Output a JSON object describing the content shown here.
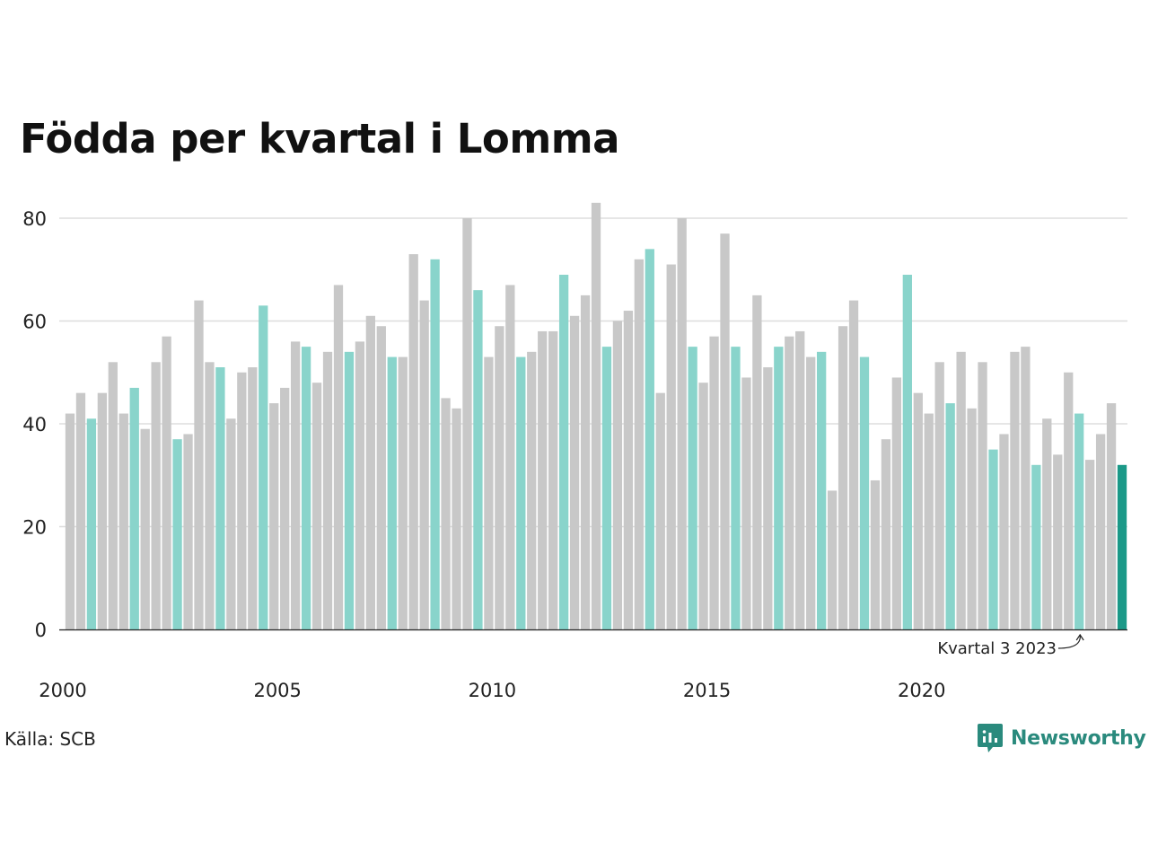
{
  "title": "Födda per kvartal i Lomma",
  "source": "Källa: SCB",
  "brand": {
    "name": "Newsworthy",
    "icon": "newsworthy-logo-icon"
  },
  "colors": {
    "gray": "#c8c8c8",
    "q3": "#89d4cb",
    "highlight": "#1b9988",
    "grid": "#dddddd",
    "axis": "#222222",
    "brand": "#2a8a7d"
  },
  "chart_data": {
    "type": "bar",
    "start_year": 2000,
    "periods_per_year": 4,
    "values": [
      42,
      46,
      41,
      46,
      52,
      42,
      47,
      39,
      52,
      57,
      37,
      38,
      64,
      52,
      51,
      41,
      50,
      51,
      63,
      44,
      47,
      56,
      55,
      48,
      54,
      67,
      54,
      56,
      61,
      59,
      53,
      53,
      73,
      64,
      72,
      45,
      43,
      80,
      66,
      53,
      59,
      67,
      53,
      54,
      58,
      58,
      69,
      61,
      65,
      83,
      55,
      60,
      62,
      72,
      74,
      46,
      71,
      80,
      55,
      48,
      57,
      77,
      55,
      49,
      65,
      51,
      55,
      57,
      58,
      53,
      54,
      27,
      59,
      64,
      53,
      29,
      37,
      49,
      69,
      46,
      42,
      52,
      44,
      54,
      43,
      52,
      35,
      38,
      54,
      55,
      32,
      41,
      34,
      50,
      42,
      33,
      38,
      44,
      32
    ],
    "y_ticks": [
      0,
      20,
      40,
      60,
      80
    ],
    "ylim": [
      0,
      85
    ],
    "x_ticks": [
      "2000",
      "2005",
      "2010",
      "2015",
      "2020"
    ],
    "annotation": {
      "label": "Kvartal 3 2023"
    },
    "grid": true
  }
}
